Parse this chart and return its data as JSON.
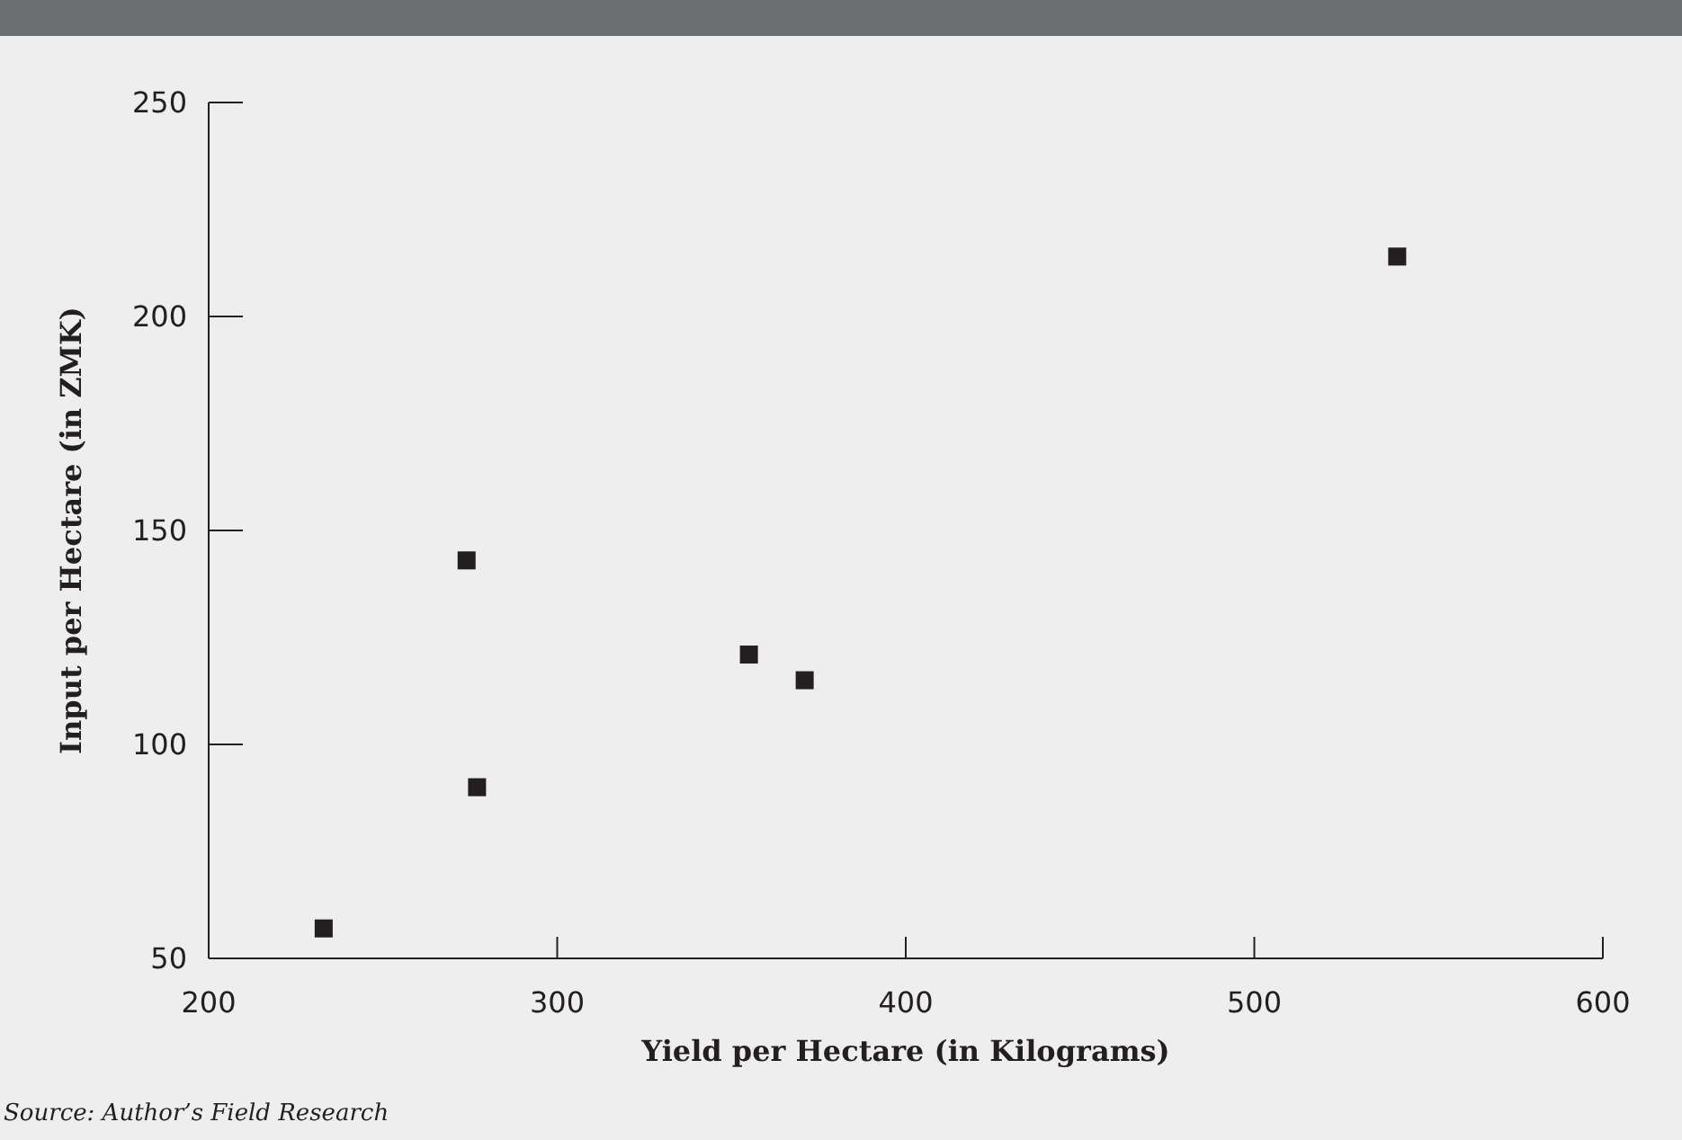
{
  "chart_data": {
    "type": "scatter",
    "xlabel": "Yield per Hectare (in Kilograms)",
    "ylabel": "Input per Hectare (in ZMK)",
    "annotations": [
      "Source: Author’s Field Research"
    ],
    "x": [
      233,
      274,
      277,
      355,
      371,
      541
    ],
    "values": [
      57,
      143,
      90,
      121,
      115,
      214
    ],
    "color": "#231f20",
    "marker": "square",
    "xlim": [
      200,
      600
    ],
    "xticks": [
      200,
      300,
      400,
      500,
      600
    ],
    "ylim": [
      50,
      250
    ],
    "yticks": [
      50,
      100,
      150,
      200,
      250
    ],
    "grid": false
  }
}
